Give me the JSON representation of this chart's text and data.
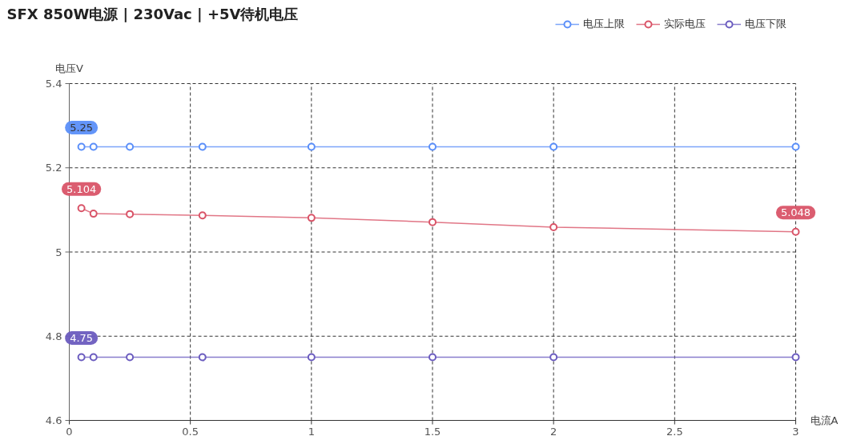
{
  "chart_data": {
    "type": "line",
    "title": "SFX 850W电源 | 230Vac | +5V待机电压",
    "xlabel": "电流A",
    "ylabel": "电压V",
    "x": [
      0.05,
      0.1,
      0.25,
      0.55,
      1,
      1.5,
      2,
      3
    ],
    "series": [
      {
        "name": "电压上限",
        "color": "#5b8ff9",
        "values": [
          5.25,
          5.25,
          5.25,
          5.25,
          5.25,
          5.25,
          5.25,
          5.25
        ],
        "value_labels": [
          "5.25",
          null,
          null,
          null,
          null,
          null,
          null,
          null
        ]
      },
      {
        "name": "实际电压",
        "color": "#d95468",
        "values": [
          5.104,
          5.091,
          5.09,
          5.087,
          5.081,
          5.071,
          5.059,
          5.048
        ],
        "value_labels": [
          "5.104",
          null,
          null,
          null,
          null,
          null,
          null,
          "5.048"
        ]
      },
      {
        "name": "电压下限",
        "color": "#6b5cbf",
        "values": [
          4.75,
          4.75,
          4.75,
          4.75,
          4.75,
          4.75,
          4.75,
          4.75
        ],
        "value_labels": [
          "4.75",
          null,
          null,
          null,
          null,
          null,
          null,
          null
        ]
      }
    ],
    "xlim": [
      0,
      3
    ],
    "xticks": [
      0,
      0.5,
      1,
      1.5,
      2,
      2.5,
      3
    ],
    "ylim": [
      4.6,
      5.4
    ],
    "yticks": [
      4.6,
      4.8,
      5,
      5.2,
      5.4
    ],
    "grid": true,
    "legend": "top right",
    "marker": "circle",
    "line_style": "solid"
  }
}
